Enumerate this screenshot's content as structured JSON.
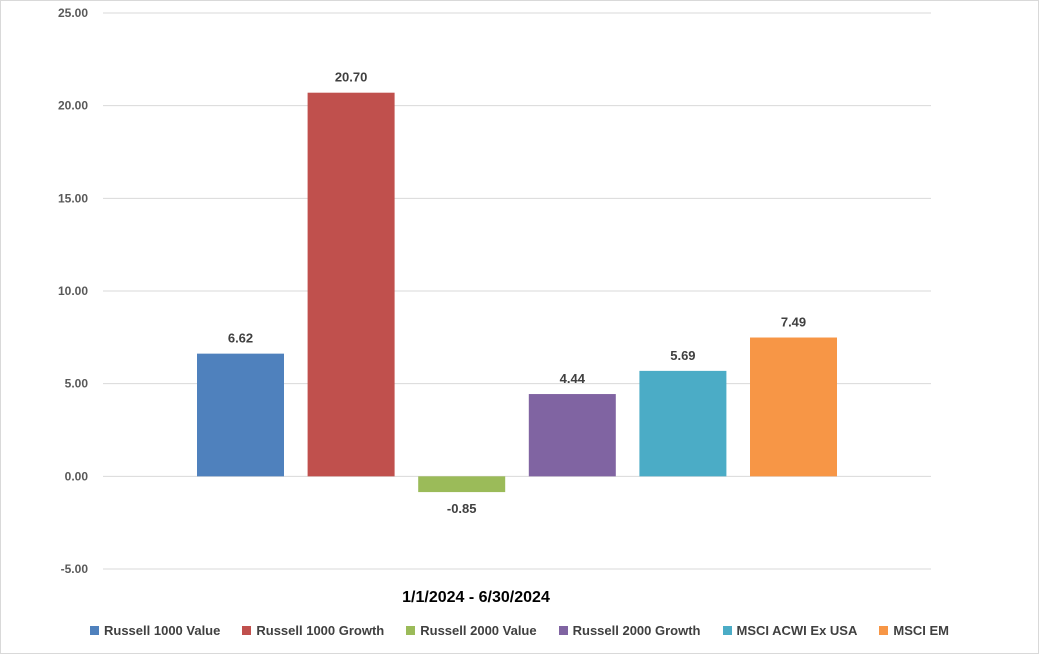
{
  "chart_data": {
    "type": "bar",
    "xlabel": "1/1/2024 - 6/30/2024",
    "ylabel": "",
    "ylim": [
      -5,
      25
    ],
    "yticks": [
      "25.00",
      "20.00",
      "15.00",
      "10.00",
      "5.00",
      "0.00",
      "-5.00"
    ],
    "grid": true,
    "legend_position": "bottom",
    "series": [
      {
        "name": "Russell 1000 Value",
        "value": 6.62,
        "label": "6.62",
        "color": "#4F81BD"
      },
      {
        "name": "Russell 1000 Growth",
        "value": 20.7,
        "label": "20.70",
        "color": "#C0504D"
      },
      {
        "name": "Russell 2000 Value",
        "value": -0.85,
        "label": "-0.85",
        "color": "#9BBB59"
      },
      {
        "name": "Russell 2000 Growth",
        "value": 4.44,
        "label": "4.44",
        "color": "#8064A2"
      },
      {
        "name": "MSCI ACWI Ex USA",
        "value": 5.69,
        "label": "5.69",
        "color": "#4BACC6"
      },
      {
        "name": "MSCI EM",
        "value": 7.49,
        "label": "7.49",
        "color": "#F79646"
      }
    ]
  }
}
